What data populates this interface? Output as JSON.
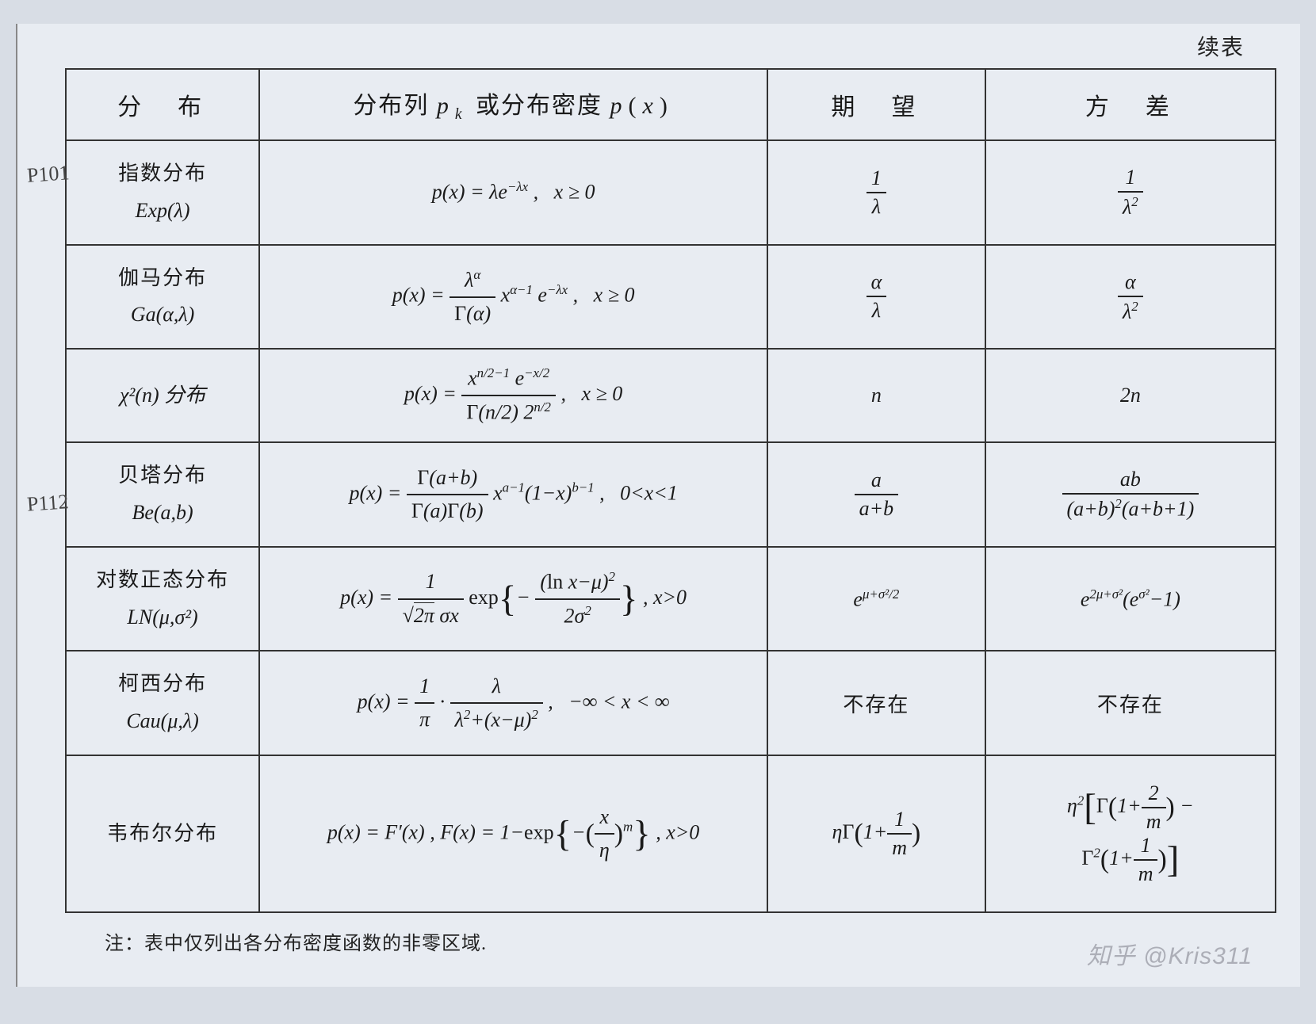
{
  "continued_label": "续表",
  "headers": {
    "distribution": "分　布",
    "function": "分布列 pₖ 或分布密度 p(x)",
    "expectation": "期　望",
    "variance": "方　差"
  },
  "rows": [
    {
      "name_cn": "指数分布",
      "name_sym": "Exp(λ)",
      "pdf_html": "p(x) = λe<span class='sup'>−λx</span> ,&nbsp;&nbsp; x ≥ 0",
      "exp_html": "<span class='frac'><span class='num'>1</span><span class='den'>λ</span></span>",
      "var_html": "<span class='frac'><span class='num'>1</span><span class='den'>λ<span class='sup'>2</span></span></span>",
      "handnote": "P101"
    },
    {
      "name_cn": "伽马分布",
      "name_sym": "Ga(α,λ)",
      "pdf_html": "p(x) = <span class='frac'><span class='num'>λ<span class='sup'>α</span></span><span class='den'><span class='upright'>Γ</span>(α)</span></span> x<span class='sup'>α−1</span> e<span class='sup'>−λx</span> ,&nbsp;&nbsp; x ≥ 0",
      "exp_html": "<span class='frac'><span class='num'>α</span><span class='den'>λ</span></span>",
      "var_html": "<span class='frac'><span class='num'>α</span><span class='den'>λ<span class='sup'>2</span></span></span>"
    },
    {
      "name_cn": "",
      "name_sym": "χ²(n) 分布",
      "pdf_html": "p(x) = <span class='frac'><span class='num'>x<span class='sup'>n/2−1</span> e<span class='sup'>−x/2</span></span><span class='den'><span class='upright'>Γ</span>(n/2) 2<span class='sup'>n/2</span></span></span> ,&nbsp;&nbsp; x ≥ 0",
      "exp_html": "n",
      "var_html": "2n"
    },
    {
      "name_cn": "贝塔分布",
      "name_sym": "Be(a,b)",
      "pdf_html": "p(x) = <span class='frac'><span class='num'><span class='upright'>Γ</span>(a+b)</span><span class='den'><span class='upright'>Γ</span>(a)<span class='upright'>Γ</span>(b)</span></span> x<span class='sup'>a−1</span>(1−x)<span class='sup'>b−1</span> ,&nbsp;&nbsp; 0&lt;x&lt;1",
      "exp_html": "<span class='frac'><span class='num'>a</span><span class='den'>a+b</span></span>",
      "var_html": "<span class='frac'><span class='num'>ab</span><span class='den'>(a+b)<span class='sup'>2</span>(a+b+1)</span></span>"
    },
    {
      "name_cn": "对数正态分布",
      "name_sym": "LN(μ,σ²)",
      "pdf_html": "p(x) = <span class='frac'><span class='num'>1</span><span class='den'>√<span style='border-top:1.5px solid #222;padding-top:1px;'>2π</span> σx</span></span> <span class='upright'>exp</span><span class='big-bracket'>{</span>− <span class='frac'><span class='num'>(<span class='upright'>ln</span> x−μ)<span class='sup'>2</span></span><span class='den'>2σ<span class='sup'>2</span></span></span><span class='big-bracket'>}</span> , x&gt;0",
      "exp_html": "e<span class='sup'>μ+σ²/2</span>",
      "var_html": "e<span class='sup'>2μ+σ²</span>(e<span class='sup'>σ²</span>−1)",
      "handnote": "P112"
    },
    {
      "name_cn": "柯西分布",
      "name_sym": "Cau(μ,λ)",
      "pdf_html": "p(x) = <span class='frac'><span class='num'>1</span><span class='den'>π</span></span> · <span class='frac'><span class='num'>λ</span><span class='den'>λ<span class='sup'>2</span>+(x−μ)<span class='sup'>2</span></span></span> ,&nbsp;&nbsp; −∞ &lt; x &lt; ∞",
      "exp_html": "<span class='cn'>不存在</span>",
      "var_html": "<span class='cn'>不存在</span>"
    },
    {
      "name_cn": "韦布尔分布",
      "name_sym": "",
      "pdf_html": "p(x) = F′(x) , F(x) = 1−<span class='upright'>exp</span><span class='big-bracket'>{</span>−<span class='med-bracket'>(</span><span class='frac'><span class='num'>x</span><span class='den'>η</span></span><span class='med-bracket'>)</span><span class='sup'>m</span><span class='big-bracket'>}</span> , x&gt;0",
      "exp_html": "η<span class='upright'>Γ</span><span class='med-bracket'>(</span>1+<span class='frac'><span class='num'>1</span><span class='den'>m</span></span><span class='med-bracket'>)</span>",
      "var_html": "η<span class='sup'>2</span><span class='big-bracket'>[</span><span class='upright'>Γ</span><span class='med-bracket'>(</span>1+<span class='frac'><span class='num'>2</span><span class='den'>m</span></span><span class='med-bracket'>)</span> −<br><span class='upright'>Γ</span><span class='sup'>2</span><span class='med-bracket'>(</span>1+<span class='frac'><span class='num'>1</span><span class='den'>m</span></span><span class='med-bracket'>)</span><span class='big-bracket'>]</span>",
      "tall": true
    }
  ],
  "footnote": "注：表中仅列出各分布密度函数的非零区域.",
  "watermark": "知乎 @Kris311"
}
